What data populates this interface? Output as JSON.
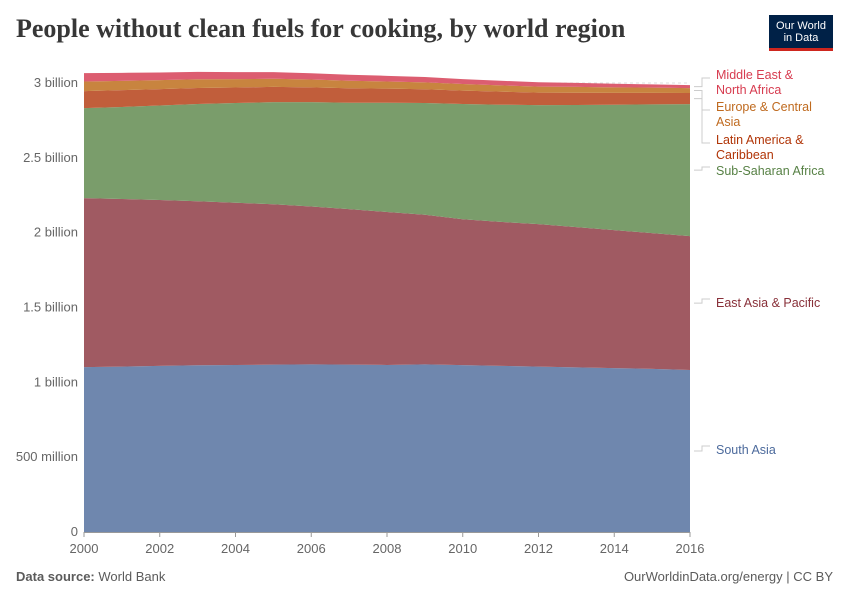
{
  "title": "People without clean fuels for cooking, by world region",
  "logo": {
    "line1": "Our World",
    "line2": "in Data"
  },
  "footer": {
    "source_label": "Data source:",
    "source": "World Bank",
    "credit": "OurWorldinData.org/energy | CC BY"
  },
  "chart_data": {
    "type": "area",
    "stacked": true,
    "title": "People without clean fuels for cooking, by world region",
    "x": [
      2000,
      2001,
      2002,
      2003,
      2004,
      2005,
      2006,
      2007,
      2008,
      2009,
      2010,
      2011,
      2012,
      2013,
      2014,
      2015,
      2016
    ],
    "xticks": [
      "2000",
      "2002",
      "2004",
      "2006",
      "2008",
      "2010",
      "2012",
      "2014",
      "2016"
    ],
    "yticks": [
      {
        "v": 0,
        "label": "0"
      },
      {
        "v": 0.5,
        "label": "500 million"
      },
      {
        "v": 1,
        "label": "1 billion"
      },
      {
        "v": 1.5,
        "label": "1.5 billion"
      },
      {
        "v": 2,
        "label": "2 billion"
      },
      {
        "v": 2.5,
        "label": "2.5 billion"
      },
      {
        "v": 3,
        "label": "3 billion"
      }
    ],
    "ylim": [
      0,
      3
    ],
    "yunit": "billion people",
    "grid": "horizontal dashed",
    "legend_placement": "right",
    "series": [
      {
        "name": "South Asia",
        "color": "#6f87ae",
        "text": "#4c6a9c",
        "values": [
          1.102,
          1.105,
          1.11,
          1.114,
          1.116,
          1.118,
          1.12,
          1.118,
          1.116,
          1.12,
          1.115,
          1.11,
          1.105,
          1.1,
          1.095,
          1.09,
          1.082
        ]
      },
      {
        "name": "East Asia & Pacific",
        "color": "#a05a62",
        "text": "#883039",
        "values": [
          1.129,
          1.12,
          1.108,
          1.096,
          1.084,
          1.072,
          1.055,
          1.039,
          1.022,
          1.0,
          0.975,
          0.962,
          0.952,
          0.937,
          0.922,
          0.907,
          0.895
        ]
      },
      {
        "name": "Sub-Saharan Africa",
        "color": "#7a9d6b",
        "text": "#578145",
        "values": [
          0.601,
          0.615,
          0.632,
          0.65,
          0.666,
          0.682,
          0.697,
          0.711,
          0.73,
          0.746,
          0.77,
          0.783,
          0.795,
          0.816,
          0.838,
          0.86,
          0.882
        ]
      },
      {
        "name": "Latin America & Caribbean",
        "color": "#c15e3b",
        "text": "#b13507",
        "values": [
          0.114,
          0.112,
          0.109,
          0.107,
          0.104,
          0.102,
          0.099,
          0.097,
          0.094,
          0.092,
          0.089,
          0.087,
          0.084,
          0.082,
          0.079,
          0.077,
          0.074
        ]
      },
      {
        "name": "Europe & Central Asia",
        "color": "#c8843f",
        "text": "#bf6a1f",
        "values": [
          0.064,
          0.062,
          0.06,
          0.058,
          0.056,
          0.054,
          0.052,
          0.05,
          0.048,
          0.046,
          0.044,
          0.042,
          0.04,
          0.039,
          0.037,
          0.035,
          0.033
        ]
      },
      {
        "name": "Middle East & North Africa",
        "color": "#dc5d70",
        "text": "#d73c50",
        "values": [
          0.056,
          0.054,
          0.051,
          0.049,
          0.047,
          0.045,
          0.042,
          0.04,
          0.038,
          0.036,
          0.033,
          0.031,
          0.029,
          0.027,
          0.024,
          0.022,
          0.02
        ]
      }
    ]
  }
}
